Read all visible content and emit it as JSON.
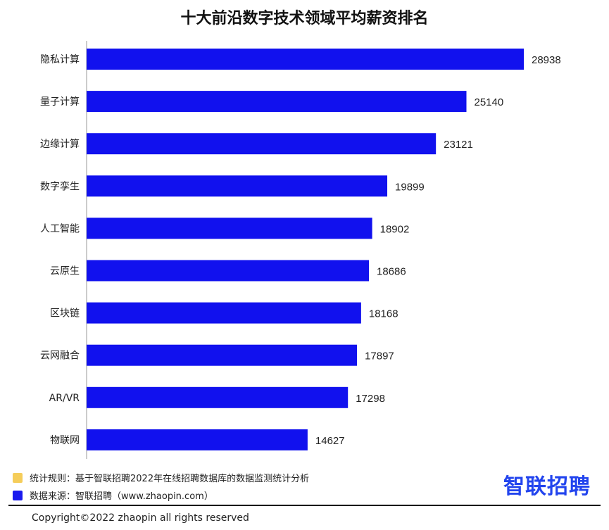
{
  "header": {
    "title": "十大前沿数字技术领域平均薪资排名"
  },
  "chart_data": {
    "type": "bar",
    "orientation": "horizontal",
    "title": "十大前沿数字技术领域平均薪资排名",
    "categories": [
      "隐私计算",
      "量子计算",
      "边缘计算",
      "数字孪生",
      "人工智能",
      "云原生",
      "区块链",
      "云网融合",
      "AR/VR",
      "物联网"
    ],
    "values": [
      28938,
      25140,
      23121,
      19899,
      18902,
      18686,
      18168,
      17897,
      17298,
      14627
    ],
    "bar_color": "#1111ee",
    "grid": false,
    "data_labels": true
  },
  "legend": {
    "rule": {
      "text": "统计规则：基于智联招聘2022年在线招聘数据库的数据监测统计分析",
      "color": "#f5cd5a"
    },
    "source": {
      "text": "数据来源：智联招聘（www.zhaopin.com）",
      "color": "#1a1aee"
    }
  },
  "brand": {
    "text": "智联招聘",
    "color": "#2244ee"
  },
  "footer": {
    "copyright": "Copyright©2022 zhaopin all rights reserved"
  }
}
